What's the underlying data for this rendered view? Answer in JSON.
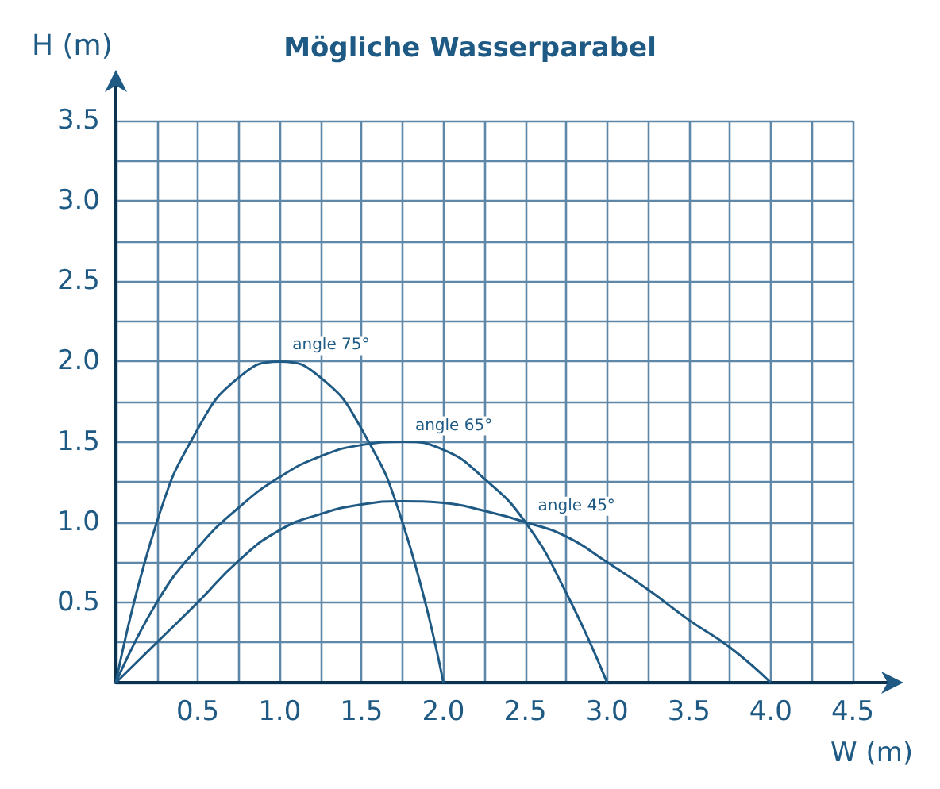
{
  "chart_data": {
    "type": "line",
    "title": "Mögliche Wasserparabel",
    "xlabel": "W (m)",
    "ylabel": "H (m)",
    "xlim": [
      0,
      4.5
    ],
    "ylim": [
      0,
      3.5
    ],
    "xticks": [
      {
        "value": 0,
        "label": null
      },
      {
        "value": 0.25,
        "label": null
      },
      {
        "value": 0.5,
        "label": "0.5"
      },
      {
        "value": 0.75,
        "label": null
      },
      {
        "value": 1,
        "label": "1.0"
      },
      {
        "value": 1.25,
        "label": null
      },
      {
        "value": 1.5,
        "label": "1.5"
      },
      {
        "value": 1.75,
        "label": null
      },
      {
        "value": 2,
        "label": "2.0"
      },
      {
        "value": 2.25,
        "label": null
      },
      {
        "value": 2.5,
        "label": "2.5"
      },
      {
        "value": 2.75,
        "label": null
      },
      {
        "value": 3,
        "label": "3.0"
      },
      {
        "value": 3.25,
        "label": null
      },
      {
        "value": 3.5,
        "label": "3.5"
      },
      {
        "value": 3.75,
        "label": null
      },
      {
        "value": 4,
        "label": "4.0"
      },
      {
        "value": 4.25,
        "label": null
      },
      {
        "value": 4.5,
        "label": "4.5"
      }
    ],
    "yticks": [
      {
        "value": 0,
        "label": null
      },
      {
        "value": 0.25,
        "label": null
      },
      {
        "value": 0.5,
        "label": "0.5"
      },
      {
        "value": 0.75,
        "label": null
      },
      {
        "value": 1,
        "label": "1.0"
      },
      {
        "value": 1.25,
        "label": null
      },
      {
        "value": 1.5,
        "label": "1.5"
      },
      {
        "value": 1.75,
        "label": null
      },
      {
        "value": 2,
        "label": "2.0"
      },
      {
        "value": 2.25,
        "label": null
      },
      {
        "value": 2.5,
        "label": "2.5"
      },
      {
        "value": 2.75,
        "label": null
      },
      {
        "value": 3,
        "label": "3.0"
      },
      {
        "value": 3.25,
        "label": null
      },
      {
        "value": 3.5,
        "label": "3.5"
      }
    ],
    "grid": true,
    "marker": "none",
    "line_style": "solid",
    "series": [
      {
        "color": "#1f5a84",
        "x": [
          0,
          0.25,
          0.5,
          0.75,
          1,
          1.25,
          1.5,
          1.75,
          2
        ],
        "values": [
          0,
          1.0,
          1.58,
          1.9,
          2.0,
          1.9,
          1.58,
          1.0,
          0
        ]
      },
      {
        "color": "#1f5a84",
        "x": [
          0,
          0.25,
          0.5,
          0.75,
          1,
          1.25,
          1.5,
          1.75,
          2,
          2.25,
          2.5,
          2.75,
          3
        ],
        "values": [
          0,
          0.5,
          0.84,
          1.09,
          1.28,
          1.41,
          1.48,
          1.5,
          1.45,
          1.27,
          1.0,
          0.56,
          0
        ]
      },
      {
        "color": "#1f5a84",
        "x": [
          0,
          0.25,
          0.5,
          0.75,
          1,
          1.25,
          1.5,
          1.75,
          2,
          2.25,
          2.5,
          2.75,
          3,
          3.25,
          3.5,
          3.75,
          4
        ],
        "values": [
          0,
          0.25,
          0.5,
          0.76,
          0.95,
          1.05,
          1.11,
          1.13,
          1.12,
          1.07,
          1.0,
          0.91,
          0.75,
          0.58,
          0.39,
          0.22,
          0
        ]
      }
    ],
    "annotations": [
      {
        "text": "angle 75°",
        "x": 1.0,
        "y": 2.0
      },
      {
        "text": "angle 65°",
        "x": 1.75,
        "y": 1.5
      },
      {
        "text": "angle 45°",
        "x": 2.5,
        "y": 1.0
      }
    ]
  }
}
